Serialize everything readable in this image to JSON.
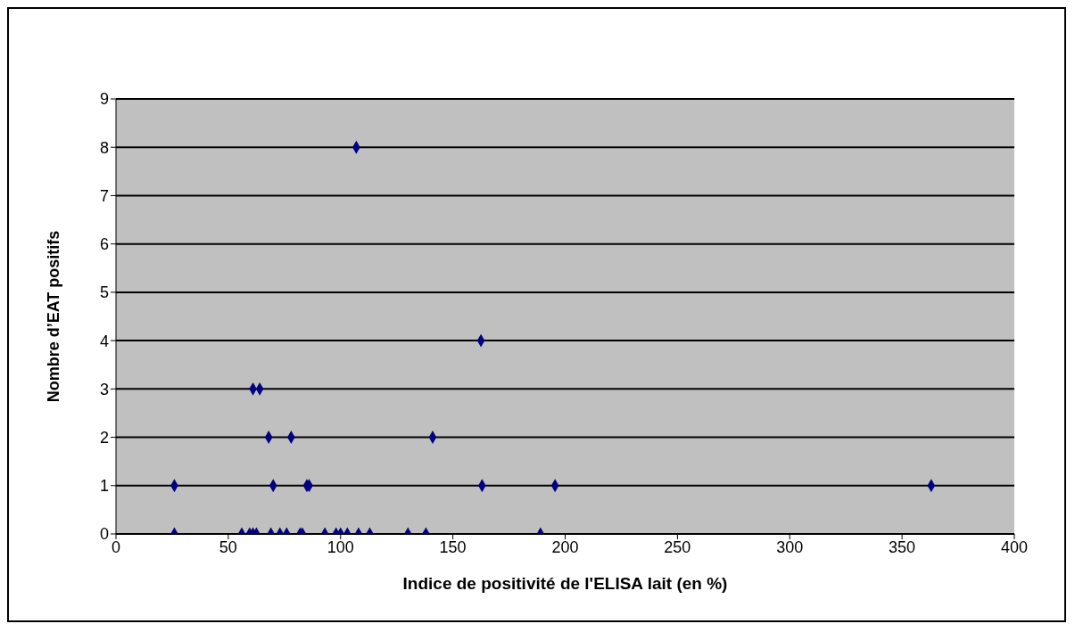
{
  "chart_data": {
    "type": "scatter",
    "xlabel": "Indice de positivité de l'ELISA lait (en %)",
    "ylabel": "Nombre d’EAT positifs",
    "xlim": [
      0,
      400
    ],
    "xticks": [
      0,
      50,
      100,
      150,
      200,
      250,
      300,
      350,
      400
    ],
    "ylim": [
      0,
      9
    ],
    "yticks": [
      0,
      1,
      2,
      3,
      4,
      5,
      6,
      7,
      8,
      9
    ],
    "grid": "y",
    "marker": "diamond",
    "legend": false,
    "series": [
      {
        "color": "#000080",
        "x": [
          26,
          56,
          59.5,
          61,
          62.5,
          69,
          73,
          76,
          82,
          83,
          93,
          98,
          100,
          103,
          108,
          113,
          130,
          138,
          189,
          26,
          70,
          85,
          86,
          163,
          195.5,
          363,
          68,
          78,
          141,
          61,
          64,
          162.5,
          107
        ],
        "values": [
          0,
          0,
          0,
          0,
          0,
          0,
          0,
          0,
          0,
          0,
          0,
          0,
          0,
          0,
          0,
          0,
          0,
          0,
          0,
          1,
          1,
          1,
          1,
          1,
          1,
          1,
          2,
          2,
          2,
          3,
          3,
          4,
          8
        ]
      }
    ]
  }
}
